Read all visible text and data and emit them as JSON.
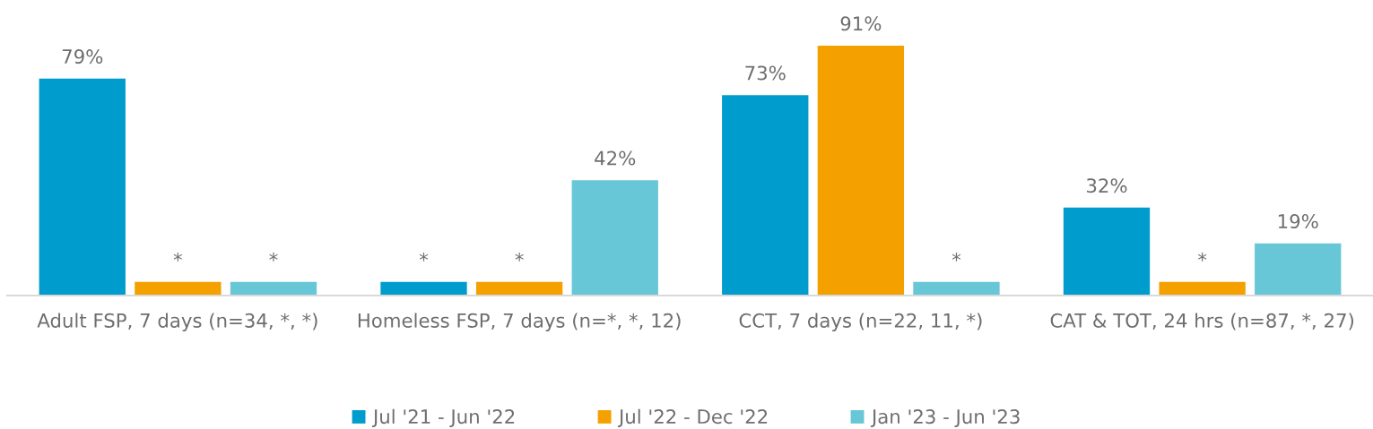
{
  "chart_data": {
    "type": "bar",
    "categories": [
      "Adult FSP, 7 days (n=34, *, *)",
      "Homeless FSP, 7 days (n=*, *, 12)",
      "CCT, 7 days (n=22, 11, *)",
      "CAT & TOT, 24 hrs (n=87, *, 27)"
    ],
    "series": [
      {
        "name": "Jul '21 - Jun '22",
        "color": "#009ccd",
        "values": [
          79,
          5,
          73,
          32
        ],
        "value_labels": [
          "79%",
          "*",
          "73%",
          "32%"
        ]
      },
      {
        "name": "Jul '22 - Dec '22",
        "color": "#f4a100",
        "values": [
          5,
          5,
          91,
          5
        ],
        "value_labels": [
          "*",
          "*",
          "91%",
          "*"
        ]
      },
      {
        "name": "Jan '23 - Jun '23",
        "color": "#67c7d7",
        "values": [
          5,
          42,
          5,
          19
        ],
        "value_labels": [
          "*",
          "42%",
          "*",
          "19%"
        ]
      }
    ],
    "tick_labels": "x",
    "legend": "bottom"
  }
}
